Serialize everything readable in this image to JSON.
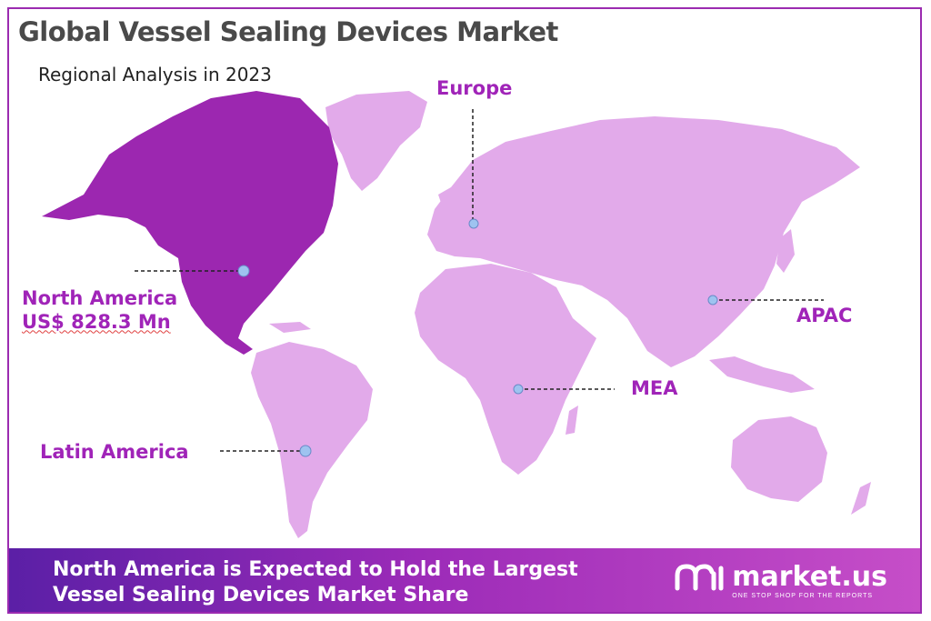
{
  "header": {
    "title": "Global Vessel Sealing Devices Market",
    "subtitle": "Regional Analysis in 2023"
  },
  "regions": [
    {
      "name": "North America",
      "value_label": "US$ 828.3 Mn",
      "highlighted": true
    },
    {
      "name": "Europe"
    },
    {
      "name": "APAC"
    },
    {
      "name": "MEA"
    },
    {
      "name": "Latin America"
    }
  ],
  "footer": {
    "line1": "North America is Expected to Hold the Largest",
    "line2": "Vessel Sealing Devices Market Share"
  },
  "brand": {
    "name": "market.us",
    "tagline": "ONE STOP SHOP FOR THE REPORTS"
  },
  "colors": {
    "highlight_region": "#9c27b0",
    "other_regions": "#e2aaea",
    "label_text": "#a024b8",
    "frame": "#9b2bb0",
    "marker": "#9ec3f0"
  }
}
